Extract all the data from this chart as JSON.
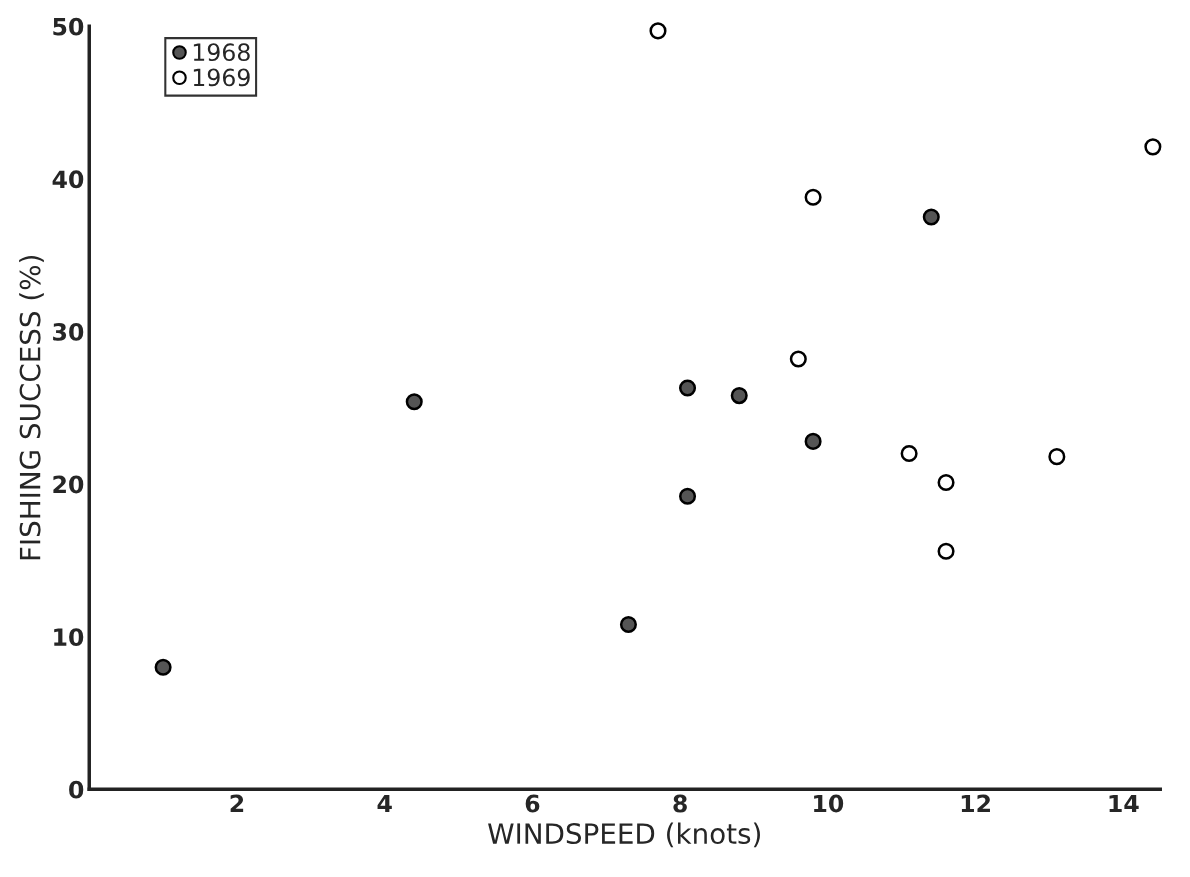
{
  "chart_data": {
    "type": "scatter",
    "xlabel": "WINDSPEED (knots)",
    "ylabel": "FISHING SUCCESS (%)",
    "xlim": [
      0,
      14.5
    ],
    "ylim": [
      0,
      50
    ],
    "xticks": [
      2,
      4,
      6,
      8,
      10,
      12,
      14
    ],
    "yticks": [
      0,
      10,
      20,
      30,
      40,
      50
    ],
    "grid": false,
    "legend": "top left",
    "marker": "circle",
    "series": [
      {
        "name": "1968",
        "color": "#555555",
        "x": [
          1.0,
          4.4,
          7.3,
          8.1,
          8.1,
          8.8,
          9.8,
          11.4
        ],
        "values": [
          8.0,
          25.4,
          10.8,
          26.3,
          19.2,
          25.8,
          22.8,
          37.5
        ]
      },
      {
        "name": "1969",
        "color": "#ffffff",
        "x": [
          7.7,
          9.8,
          9.6,
          11.1,
          11.6,
          11.6,
          13.1,
          14.4
        ],
        "values": [
          49.7,
          38.8,
          28.2,
          22.0,
          20.1,
          15.6,
          21.8,
          42.1
        ]
      }
    ]
  }
}
